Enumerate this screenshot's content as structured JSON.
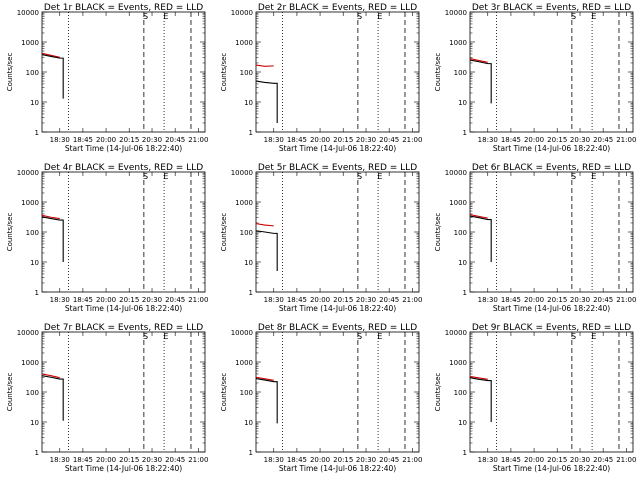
{
  "chart_data": {
    "type": "line",
    "yscale": "log",
    "ylim": [
      1,
      10000
    ],
    "yticks": [
      "1",
      "10",
      "100",
      "1000",
      "10000"
    ],
    "ylabel": "Counts/sec",
    "xlabel": "Start Time (14-Jul-06 18:22:40)",
    "xticks": [
      "18:30",
      "18:45",
      "20:00",
      "20:15",
      "20:30",
      "20:45",
      "21:00"
    ],
    "markers": [
      {
        "label": "S",
        "style": "dashed"
      },
      {
        "label": "E",
        "style": "dashed"
      }
    ],
    "colors": {
      "events": "#000000",
      "lld": "#cc0000"
    },
    "panels": [
      {
        "title": "Det 1r BLACK = Events, RED = LLD",
        "events": [
          380,
          330,
          290
        ],
        "lld": [
          420,
          360,
          310
        ],
        "drop_to": 13
      },
      {
        "title": "Det 2r BLACK = Events, RED = LLD",
        "events": [
          50,
          45,
          42
        ],
        "lld": [
          170,
          155,
          160
        ],
        "drop_to": 2
      },
      {
        "title": "Det 3r BLACK = Events, RED = LLD",
        "events": [
          250,
          220,
          190
        ],
        "lld": [
          280,
          240,
          210
        ],
        "drop_to": 9
      },
      {
        "title": "Det 4r BLACK = Events, RED = LLD",
        "events": [
          320,
          280,
          250
        ],
        "lld": [
          360,
          310,
          280
        ],
        "drop_to": 10
      },
      {
        "title": "Det 5r BLACK = Events, RED = LLD",
        "events": [
          110,
          100,
          90
        ],
        "lld": [
          190,
          170,
          160
        ],
        "drop_to": 5
      },
      {
        "title": "Det 6r BLACK = Events, RED = LLD",
        "events": [
          340,
          300,
          260
        ],
        "lld": [
          380,
          330,
          290
        ],
        "drop_to": 10
      },
      {
        "title": "Det 7r BLACK = Events, RED = LLD",
        "events": [
          350,
          310,
          270
        ],
        "lld": [
          400,
          350,
          300
        ],
        "drop_to": 11
      },
      {
        "title": "Det 8r BLACK = Events, RED = LLD",
        "events": [
          280,
          250,
          220
        ],
        "lld": [
          310,
          275,
          245
        ],
        "drop_to": 9
      },
      {
        "title": "Det 9r BLACK = Events, RED = LLD",
        "events": [
          300,
          265,
          240
        ],
        "lld": [
          330,
          295,
          265
        ],
        "drop_to": 10
      }
    ]
  }
}
